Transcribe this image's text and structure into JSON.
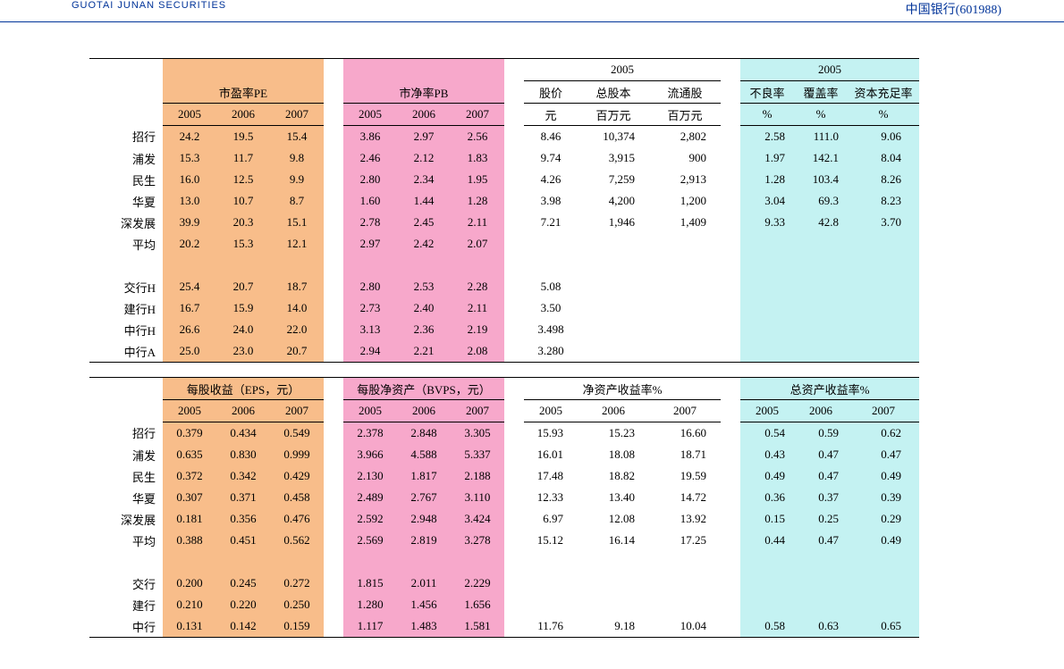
{
  "header": {
    "logo": "GUOTAI JUNAN SECURITIES",
    "stock": "中国银行(601988)"
  },
  "table1": {
    "groups": {
      "pe": {
        "title": "市盈率PE",
        "years": [
          "2005",
          "2006",
          "2007"
        ],
        "color": "c-orange"
      },
      "pb": {
        "title": "市净率PB",
        "years": [
          "2005",
          "2006",
          "2007"
        ],
        "color": "c-pink"
      },
      "mid": {
        "super": "2005",
        "cols": [
          "股价",
          "总股本",
          "流通股"
        ],
        "units": [
          "元",
          "百万元",
          "百万元"
        ],
        "color": "c-white"
      },
      "right": {
        "super": "2005",
        "cols": [
          "不良率",
          "覆盖率",
          "资本充足率"
        ],
        "units": [
          "%",
          "%",
          "%"
        ],
        "color": "c-cyan"
      }
    },
    "rows": [
      {
        "label": "招行",
        "pe": [
          "24.2",
          "19.5",
          "15.4"
        ],
        "pb": [
          "3.86",
          "2.97",
          "2.56"
        ],
        "mid": [
          "8.46",
          "10,374",
          "2,802"
        ],
        "right": [
          "2.58",
          "111.0",
          "9.06"
        ]
      },
      {
        "label": "浦发",
        "pe": [
          "15.3",
          "11.7",
          "9.8"
        ],
        "pb": [
          "2.46",
          "2.12",
          "1.83"
        ],
        "mid": [
          "9.74",
          "3,915",
          "900"
        ],
        "right": [
          "1.97",
          "142.1",
          "8.04"
        ]
      },
      {
        "label": "民生",
        "pe": [
          "16.0",
          "12.5",
          "9.9"
        ],
        "pb": [
          "2.80",
          "2.34",
          "1.95"
        ],
        "mid": [
          "4.26",
          "7,259",
          "2,913"
        ],
        "right": [
          "1.28",
          "103.4",
          "8.26"
        ]
      },
      {
        "label": "华夏",
        "pe": [
          "13.0",
          "10.7",
          "8.7"
        ],
        "pb": [
          "1.60",
          "1.44",
          "1.28"
        ],
        "mid": [
          "3.98",
          "4,200",
          "1,200"
        ],
        "right": [
          "3.04",
          "69.3",
          "8.23"
        ]
      },
      {
        "label": "深发展",
        "pe": [
          "39.9",
          "20.3",
          "15.1"
        ],
        "pb": [
          "2.78",
          "2.45",
          "2.11"
        ],
        "mid": [
          "7.21",
          "1,946",
          "1,409"
        ],
        "right": [
          "9.33",
          "42.8",
          "3.70"
        ]
      },
      {
        "label": "平均",
        "pe": [
          "20.2",
          "15.3",
          "12.1"
        ],
        "pb": [
          "2.97",
          "2.42",
          "2.07"
        ],
        "mid": [
          "",
          "",
          ""
        ],
        "right": [
          "",
          "",
          ""
        ]
      },
      {
        "label": "",
        "pe": [
          "",
          "",
          ""
        ],
        "pb": [
          "",
          "",
          ""
        ],
        "mid": [
          "",
          "",
          ""
        ],
        "right": [
          "",
          "",
          ""
        ]
      },
      {
        "label": "交行H",
        "pe": [
          "25.4",
          "20.7",
          "18.7"
        ],
        "pb": [
          "2.80",
          "2.53",
          "2.28"
        ],
        "mid": [
          "5.08",
          "",
          ""
        ],
        "right": [
          "",
          "",
          ""
        ]
      },
      {
        "label": "建行H",
        "pe": [
          "16.7",
          "15.9",
          "14.0"
        ],
        "pb": [
          "2.73",
          "2.40",
          "2.11"
        ],
        "mid": [
          "3.50",
          "",
          ""
        ],
        "right": [
          "",
          "",
          ""
        ]
      },
      {
        "label": "中行H",
        "pe": [
          "26.6",
          "24.0",
          "22.0"
        ],
        "pb": [
          "3.13",
          "2.36",
          "2.19"
        ],
        "mid": [
          "3.498",
          "",
          ""
        ],
        "right": [
          "",
          "",
          ""
        ]
      },
      {
        "label": "中行A",
        "pe": [
          "25.0",
          "23.0",
          "20.7"
        ],
        "pb": [
          "2.94",
          "2.21",
          "2.08"
        ],
        "mid": [
          "3.280",
          "",
          ""
        ],
        "right": [
          "",
          "",
          ""
        ]
      }
    ]
  },
  "table2": {
    "groups": {
      "eps": {
        "title": "每股收益（EPS，元）",
        "years": [
          "2005",
          "2006",
          "2007"
        ],
        "color": "c-orange"
      },
      "bvps": {
        "title": "每股净资产（BVPS，元）",
        "years": [
          "2005",
          "2006",
          "2007"
        ],
        "color": "c-pink"
      },
      "roe": {
        "title": "净资产收益率%",
        "years": [
          "2005",
          "2006",
          "2007"
        ],
        "color": "c-white"
      },
      "roa": {
        "title": "总资产收益率%",
        "years": [
          "2005",
          "2006",
          "2007"
        ],
        "color": "c-cyan"
      }
    },
    "rows": [
      {
        "label": "招行",
        "eps": [
          "0.379",
          "0.434",
          "0.549"
        ],
        "bvps": [
          "2.378",
          "2.848",
          "3.305"
        ],
        "roe": [
          "15.93",
          "15.23",
          "16.60"
        ],
        "roa": [
          "0.54",
          "0.59",
          "0.62"
        ]
      },
      {
        "label": "浦发",
        "eps": [
          "0.635",
          "0.830",
          "0.999"
        ],
        "bvps": [
          "3.966",
          "4.588",
          "5.337"
        ],
        "roe": [
          "16.01",
          "18.08",
          "18.71"
        ],
        "roa": [
          "0.43",
          "0.47",
          "0.47"
        ]
      },
      {
        "label": "民生",
        "eps": [
          "0.372",
          "0.342",
          "0.429"
        ],
        "bvps": [
          "2.130",
          "1.817",
          "2.188"
        ],
        "roe": [
          "17.48",
          "18.82",
          "19.59"
        ],
        "roa": [
          "0.49",
          "0.47",
          "0.49"
        ]
      },
      {
        "label": "华夏",
        "eps": [
          "0.307",
          "0.371",
          "0.458"
        ],
        "bvps": [
          "2.489",
          "2.767",
          "3.110"
        ],
        "roe": [
          "12.33",
          "13.40",
          "14.72"
        ],
        "roa": [
          "0.36",
          "0.37",
          "0.39"
        ]
      },
      {
        "label": "深发展",
        "eps": [
          "0.181",
          "0.356",
          "0.476"
        ],
        "bvps": [
          "2.592",
          "2.948",
          "3.424"
        ],
        "roe": [
          "6.97",
          "12.08",
          "13.92"
        ],
        "roa": [
          "0.15",
          "0.25",
          "0.29"
        ]
      },
      {
        "label": "平均",
        "eps": [
          "0.388",
          "0.451",
          "0.562"
        ],
        "bvps": [
          "2.569",
          "2.819",
          "3.278"
        ],
        "roe": [
          "15.12",
          "16.14",
          "17.25"
        ],
        "roa": [
          "0.44",
          "0.47",
          "0.49"
        ]
      },
      {
        "label": "",
        "eps": [
          "",
          "",
          ""
        ],
        "bvps": [
          "",
          "",
          ""
        ],
        "roe": [
          "",
          "",
          ""
        ],
        "roa": [
          "",
          "",
          ""
        ]
      },
      {
        "label": "交行",
        "eps": [
          "0.200",
          "0.245",
          "0.272"
        ],
        "bvps": [
          "1.815",
          "2.011",
          "2.229"
        ],
        "roe": [
          "",
          "",
          ""
        ],
        "roa": [
          "",
          "",
          ""
        ]
      },
      {
        "label": "建行",
        "eps": [
          "0.210",
          "0.220",
          "0.250"
        ],
        "bvps": [
          "1.280",
          "1.456",
          "1.656"
        ],
        "roe": [
          "",
          "",
          ""
        ],
        "roa": [
          "",
          "",
          ""
        ]
      },
      {
        "label": "中行",
        "eps": [
          "0.131",
          "0.142",
          "0.159"
        ],
        "bvps": [
          "1.117",
          "1.483",
          "1.581"
        ],
        "roe": [
          "11.76",
          "9.18",
          "10.04"
        ],
        "roa": [
          "0.58",
          "0.63",
          "0.65"
        ]
      }
    ]
  },
  "style": {
    "colors": {
      "orange": "#f8bd8a",
      "pink": "#f7a8cb",
      "cyan": "#c4f2f2",
      "border": "#000000",
      "header_blue": "#003399"
    },
    "col_widths": {
      "label": 70,
      "gap": 14,
      "std": 60,
      "wide": 80
    },
    "fonts": {
      "cell_size": 13,
      "family": "SimSun"
    }
  }
}
